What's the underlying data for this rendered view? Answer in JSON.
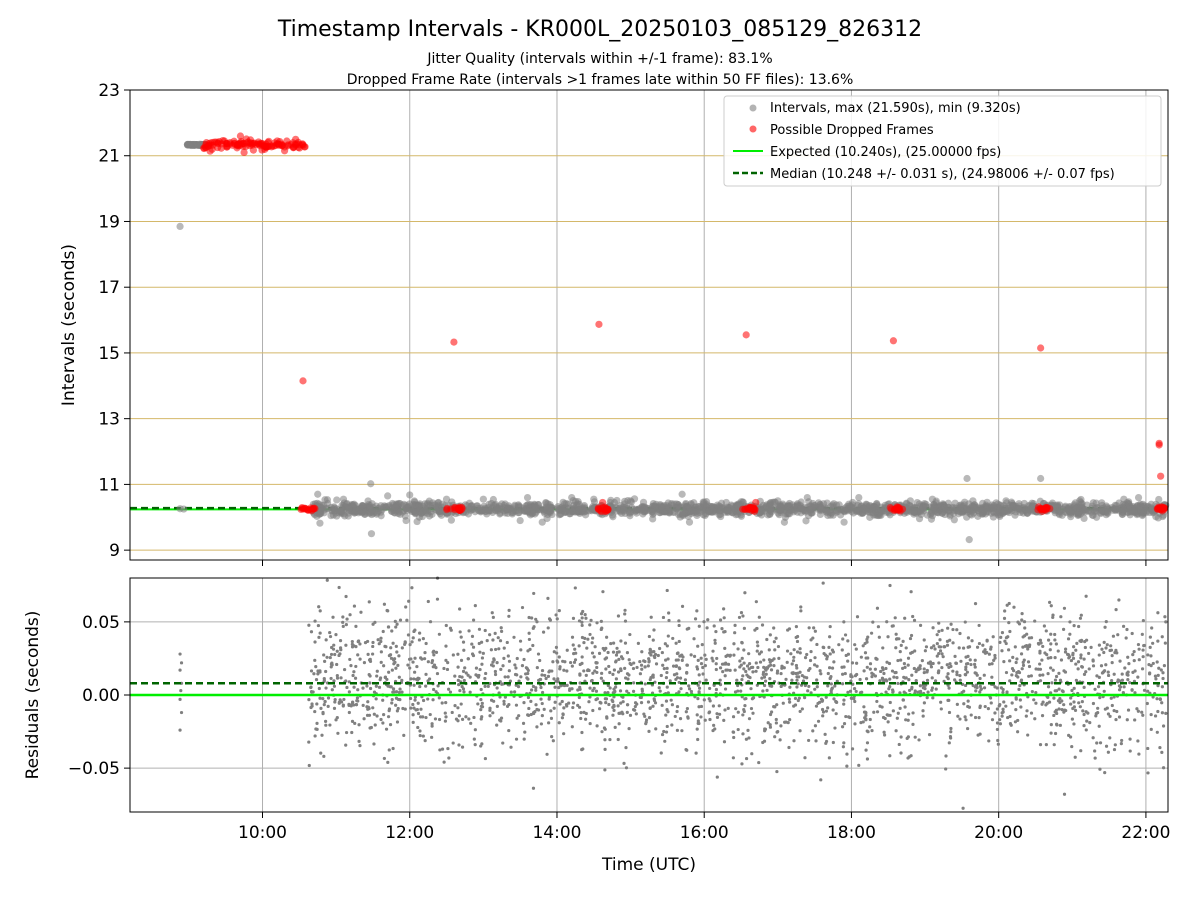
{
  "figure": {
    "title": "Timestamp Intervals - KR000L_20250103_085129_826312",
    "subtitle_1": "Jitter Quality (intervals within +/-1 frame): 83.1%",
    "subtitle_2": "Dropped Frame Rate (intervals >1 frames late within 50 FF files): 13.6%"
  },
  "colors": {
    "intervals": "#808080",
    "dropped": "#ff0000",
    "expected": "#00ee00",
    "median": "#006400",
    "hgrid_top": "#d4b86a",
    "grid": "#b0b0b0"
  },
  "chart_data": [
    {
      "type": "scatter",
      "id": "intervals",
      "ylabel": "Intervals (seconds)",
      "ylim": [
        8.7,
        23
      ],
      "yticks": [
        9,
        11,
        13,
        15,
        17,
        19,
        21,
        23
      ],
      "ytick_labels": [
        "9",
        "11",
        "13",
        "15",
        "17",
        "19",
        "21",
        "23"
      ],
      "xlim": [
        8.2,
        22.3
      ],
      "grid": true,
      "legend_position": "upper-right",
      "legend": [
        {
          "label": "Intervals, max (21.590s), min (9.320s)",
          "kind": "dot",
          "color": "#808080"
        },
        {
          "label": "Possible Dropped Frames",
          "kind": "dot",
          "color": "#ff0000"
        },
        {
          "label": "Expected (10.240s), (25.00000 fps)",
          "kind": "line",
          "color": "#00ee00"
        },
        {
          "label": "Median (10.248 +/- 0.031 s), (24.98006 +/- 0.07 fps)",
          "kind": "dashed",
          "color": "#006400"
        }
      ],
      "expected_value": 10.24,
      "median_value": 10.248,
      "series": [
        {
          "name": "Intervals, max (21.590s), min (9.320s)",
          "note_time_units": "hours UTC",
          "points": [
            [
              8.88,
              18.85
            ],
            [
              8.88,
              10.26
            ],
            [
              8.93,
              10.25
            ],
            [
              9.0,
              21.33
            ],
            [
              9.05,
              21.34
            ],
            [
              9.1,
              21.33
            ],
            [
              9.15,
              21.35
            ],
            [
              9.18,
              21.33
            ],
            [
              10.75,
              10.7
            ],
            [
              10.78,
              9.82
            ],
            [
              11.1,
              10.55
            ],
            [
              11.47,
              11.02
            ],
            [
              11.48,
              9.5
            ],
            [
              11.7,
              10.65
            ],
            [
              11.95,
              9.9
            ],
            [
              12.0,
              10.68
            ],
            [
              12.1,
              9.87
            ],
            [
              12.5,
              10.55
            ],
            [
              13.0,
              10.55
            ],
            [
              13.5,
              9.9
            ],
            [
              13.6,
              10.6
            ],
            [
              13.8,
              9.85
            ],
            [
              14.2,
              10.6
            ],
            [
              14.5,
              10.55
            ],
            [
              15.0,
              10.5
            ],
            [
              15.3,
              9.95
            ],
            [
              15.7,
              10.7
            ],
            [
              15.8,
              9.85
            ],
            [
              16.3,
              10.45
            ],
            [
              17.0,
              10.5
            ],
            [
              17.4,
              10.6
            ],
            [
              17.9,
              9.85
            ],
            [
              18.1,
              10.6
            ],
            [
              18.8,
              10.5
            ],
            [
              19.1,
              10.55
            ],
            [
              19.57,
              11.18
            ],
            [
              19.6,
              9.32
            ],
            [
              19.65,
              10.5
            ],
            [
              20.1,
              10.5
            ],
            [
              20.57,
              11.18
            ],
            [
              21.1,
              10.5
            ],
            [
              21.7,
              10.55
            ],
            [
              21.9,
              10.6
            ]
          ]
        },
        {
          "name": "Possible Dropped Frames",
          "points": [
            [
              9.7,
              21.6
            ],
            [
              9.75,
              21.1
            ],
            [
              10.2,
              21.45
            ],
            [
              10.3,
              21.15
            ],
            [
              10.45,
              21.5
            ],
            [
              10.55,
              14.15
            ],
            [
              12.6,
              15.33
            ],
            [
              14.57,
              15.87
            ],
            [
              16.57,
              15.55
            ],
            [
              18.57,
              15.37
            ],
            [
              20.57,
              15.15
            ],
            [
              22.18,
              12.25
            ],
            [
              22.18,
              12.2
            ],
            [
              22.2,
              11.25
            ],
            [
              14.62,
              10.45
            ],
            [
              16.7,
              10.45
            ]
          ]
        }
      ]
    },
    {
      "type": "scatter",
      "id": "residuals",
      "ylabel": "Residuals (seconds)",
      "ylim": [
        -0.08,
        0.08
      ],
      "yticks": [
        -0.05,
        0.0,
        0.05
      ],
      "ytick_labels": [
        "−0.05",
        "0.00",
        "0.05"
      ],
      "xlabel": "Time (UTC)",
      "xlim": [
        8.2,
        22.3
      ],
      "xticks": [
        10,
        12,
        14,
        16,
        18,
        20,
        22
      ],
      "xtick_labels": [
        "10:00",
        "12:00",
        "14:00",
        "16:00",
        "18:00",
        "20:00",
        "22:00"
      ],
      "grid": true,
      "expected_value": 0.0,
      "median_value": 0.008,
      "series": [
        {
          "name": "Residuals",
          "points": [
            [
              8.88,
              0.028
            ],
            [
              8.88,
              0.017
            ],
            [
              8.9,
              0.008
            ],
            [
              8.88,
              -0.003
            ],
            [
              8.9,
              -0.012
            ],
            [
              8.88,
              -0.024
            ],
            [
              8.9,
              0.022
            ],
            [
              8.89,
              0.003
            ]
          ]
        }
      ]
    }
  ]
}
